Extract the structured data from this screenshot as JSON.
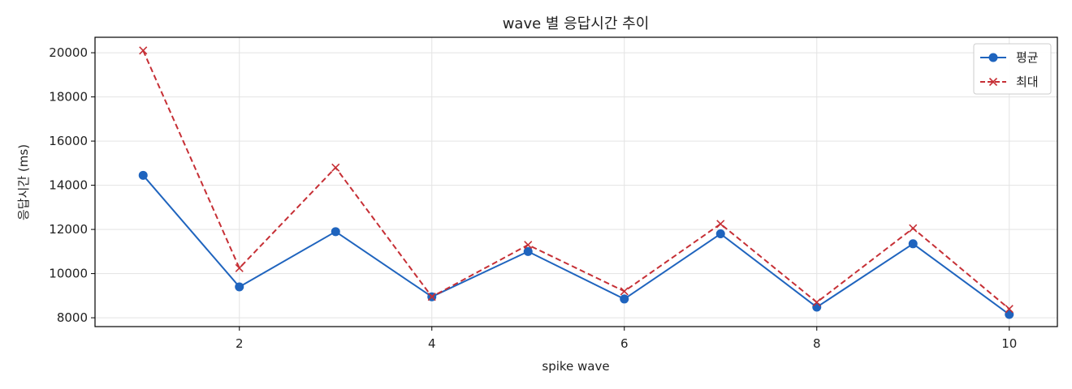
{
  "chart_data": {
    "type": "line",
    "title": "wave 별 응답시간 추이",
    "xlabel": "spike wave",
    "ylabel": "응답시간 (ms)",
    "x": [
      1,
      2,
      3,
      4,
      5,
      6,
      7,
      8,
      9,
      10
    ],
    "xlim": [
      0.5,
      10.5
    ],
    "ylim": [
      7600,
      20700
    ],
    "xticks": [
      2,
      4,
      6,
      8,
      10
    ],
    "yticks": [
      8000,
      10000,
      12000,
      14000,
      16000,
      18000,
      20000
    ],
    "grid": true,
    "legend_position": "top-right",
    "series": [
      {
        "name": "평균",
        "values": [
          14450,
          9400,
          11900,
          8950,
          11000,
          8850,
          11800,
          8480,
          11350,
          8150
        ],
        "color": "#1f64be",
        "marker": "circle",
        "line_style": "solid"
      },
      {
        "name": "최대",
        "values": [
          20100,
          10250,
          14800,
          8950,
          11300,
          9200,
          12250,
          8700,
          12050,
          8400
        ],
        "color": "#c62f35",
        "marker": "x",
        "line_style": "dashed"
      }
    ]
  }
}
